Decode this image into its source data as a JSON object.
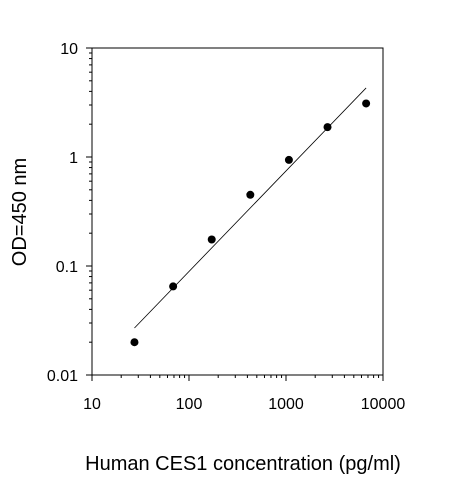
{
  "chart_data": {
    "type": "scatter",
    "title": "",
    "xlabel": "Human CES1 concentration (pg/ml)",
    "ylabel": "OD=450 nm",
    "x_scale": "log",
    "y_scale": "log",
    "xlim": [
      10,
      10000
    ],
    "ylim": [
      0.01,
      10
    ],
    "x_ticks": [
      10,
      100,
      1000,
      10000
    ],
    "x_tick_labels": [
      "10",
      "100",
      "1000",
      "10000"
    ],
    "y_ticks": [
      0.01,
      0.1,
      1,
      10
    ],
    "y_tick_labels": [
      "0.01",
      "0.1",
      "1",
      "10"
    ],
    "grid": false,
    "legend": "none",
    "series": [
      {
        "marker": "filled-circle",
        "color": "#000000",
        "x": [
          27.4,
          68.6,
          171.5,
          428.7,
          1071.7,
          2679.2,
          6698.0
        ],
        "y": [
          0.02,
          0.065,
          0.175,
          0.45,
          0.94,
          1.88,
          3.1
        ]
      }
    ],
    "fit_line": {
      "type": "linear-log-log",
      "color": "#000000",
      "x": [
        27.4,
        6698.0
      ],
      "y": [
        0.027,
        4.3
      ]
    }
  }
}
